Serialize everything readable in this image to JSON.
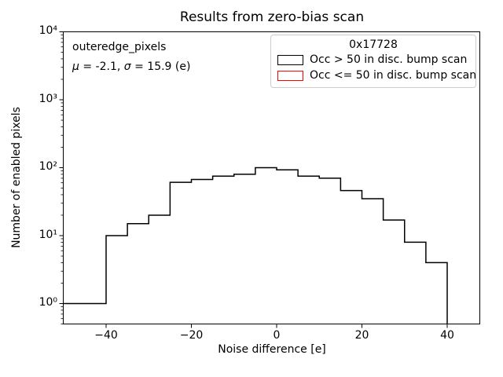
{
  "title": "Results from zero-bias scan",
  "annotation": {
    "line1": "outeredge_pixels",
    "mu_symbol": "μ",
    "mu_rest": " = -2.1, ",
    "sigma_symbol": "σ",
    "sigma_rest": " = 15.9 (e)"
  },
  "legend": {
    "title": "0x17728",
    "entries": [
      {
        "label": "Occ > 50 in disc. bump scan",
        "color": "#000000"
      },
      {
        "label": "Occ <= 50 in disc. bump scan",
        "color": "#ff0000"
      }
    ]
  },
  "chart_data": {
    "type": "bar",
    "subtype": "step-histogram",
    "title": "Results from zero-bias scan",
    "xlabel": "Noise difference [e]",
    "ylabel": "Number of enabled pixels",
    "yscale": "log",
    "xlim": [
      -50,
      47.7
    ],
    "ylim": [
      0.5,
      10000
    ],
    "grid": false,
    "legend_position": "upper right",
    "x_ticks": [
      -40,
      -20,
      0,
      20,
      40
    ],
    "x_tick_labels": [
      "−40",
      "−20",
      "0",
      "20",
      "40"
    ],
    "y_ticks": [
      1,
      10,
      100,
      1000,
      10000
    ],
    "y_tick_labels": [
      "10⁰",
      "10¹",
      "10²",
      "10³",
      "10⁴"
    ],
    "bin_edges": [
      -50,
      -45,
      -40,
      -35,
      -30,
      -25,
      -20,
      -15,
      -10,
      -5,
      0,
      5,
      10,
      15,
      20,
      25,
      30,
      35,
      40
    ],
    "series": [
      {
        "name": "Occ > 50 in disc. bump scan",
        "color": "#000000",
        "counts": [
          1,
          1,
          10,
          15,
          20,
          61,
          67,
          75,
          80,
          100,
          93,
          75,
          70,
          46,
          35,
          17,
          8,
          4
        ]
      },
      {
        "name": "Occ <= 50 in disc. bump scan",
        "color": "#ff0000",
        "counts": []
      }
    ]
  }
}
